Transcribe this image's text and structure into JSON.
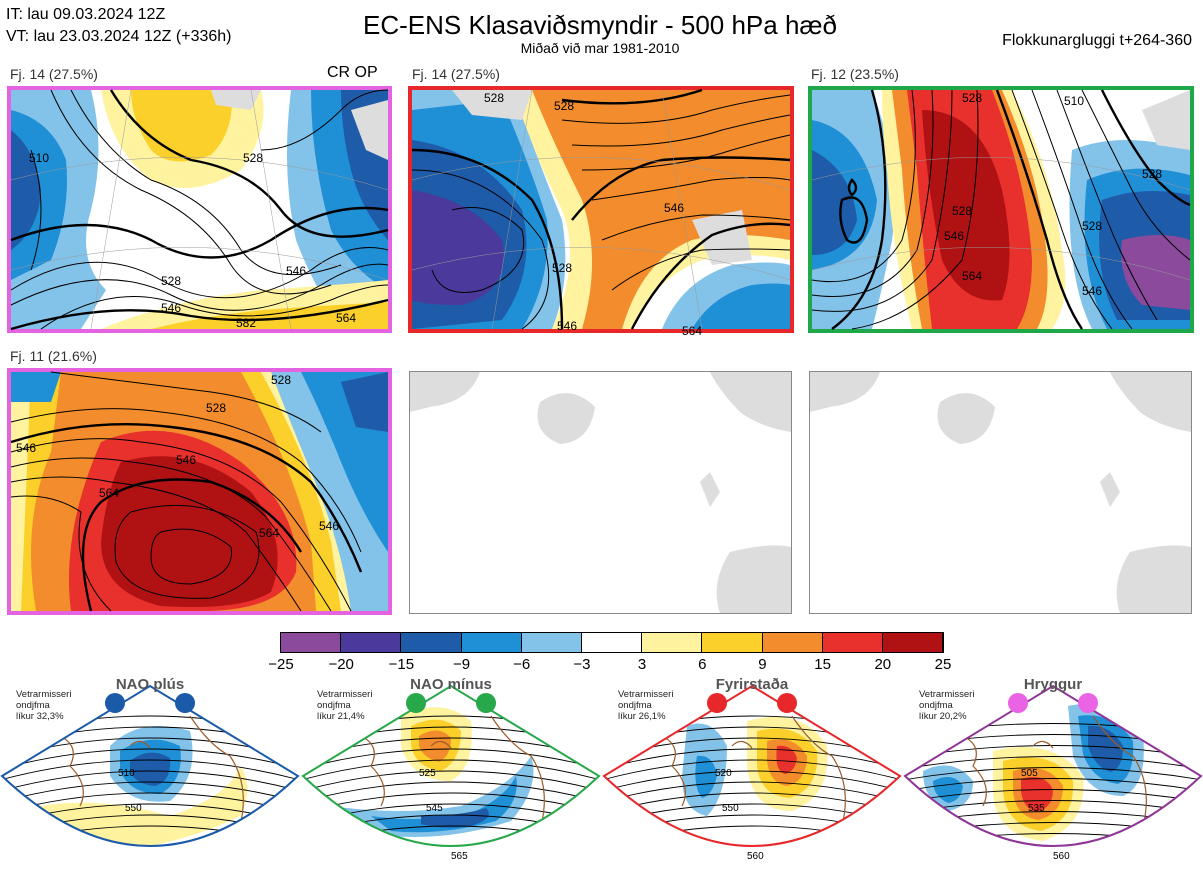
{
  "header": {
    "init_time": "IT: lau 09.03.2024 12Z",
    "valid_time": "VT: lau 23.03.2024 12Z  (+336h)",
    "title": "EC-ENS Klasaviðsmyndir - 500 hPa hæð",
    "subtitle": "Miðað við mar 1981-2010",
    "window": "Flokkunargluggi t+264-360"
  },
  "panels": [
    {
      "label": "Fj. 14 (27.5%)",
      "border": "#e463e0",
      "tag": "CR OP",
      "contour_labels": [
        "528",
        "546",
        "528",
        "546",
        "564",
        "582",
        "510"
      ]
    },
    {
      "label": "Fj. 14 (27.5%)",
      "border": "#e8272a",
      "contour_labels": [
        "528",
        "528",
        "546",
        "528",
        "546",
        "564"
      ]
    },
    {
      "label": "Fj. 12 (23.5%)",
      "border": "#1fa84a",
      "contour_labels": [
        "528",
        "528",
        "546",
        "564",
        "528",
        "546",
        "528",
        "510"
      ]
    },
    {
      "label": "Fj. 11 (21.6%)",
      "border": "#e463e0",
      "contour_labels": [
        "546",
        "528",
        "546",
        "564",
        "564",
        "546",
        "528"
      ]
    },
    {
      "label": "",
      "border": "#888888"
    },
    {
      "label": "",
      "border": "#888888"
    }
  ],
  "colorbar": {
    "ticks": [
      "−25",
      "−20",
      "−15",
      "−9",
      "−6",
      "−3",
      "3",
      "6",
      "9",
      "15",
      "20",
      "25"
    ],
    "colors": [
      "#8b4a9c",
      "#4b3a9b",
      "#1e5ba8",
      "#1f8fd6",
      "#83c3ea",
      "#ffffff",
      "#fff3a0",
      "#fbd02a",
      "#f28c2c",
      "#e8302c",
      "#b01214"
    ]
  },
  "regimes": [
    {
      "name": "NAO plús",
      "meta": [
        "Vetrarmisseri",
        "ondjfma",
        "líkur 32,3%"
      ],
      "dot_color": "#1a5aa8",
      "frame_color": "#1a5aa8",
      "labels": [
        "510",
        "550"
      ]
    },
    {
      "name": "NAO mínus",
      "meta": [
        "Vetrarmisseri",
        "ondjfma",
        "líkur 21,4%"
      ],
      "dot_color": "#27a84a",
      "frame_color": "#27a84a",
      "labels": [
        "525",
        "545",
        "565"
      ]
    },
    {
      "name": "Fyrirstaða",
      "meta": [
        "Vetrarmisseri",
        "ondjfma",
        "líkur 26,1%"
      ],
      "dot_color": "#e8272a",
      "frame_color": "#e8272a",
      "labels": [
        "520",
        "550",
        "560"
      ]
    },
    {
      "name": "Hryggur",
      "meta": [
        "Vetrarmisseri",
        "ondjfma",
        "líkur 20,2%"
      ],
      "dot_color": "#ea63e5",
      "frame_color": "#8e3596",
      "labels": [
        "505",
        "535",
        "560"
      ]
    }
  ]
}
